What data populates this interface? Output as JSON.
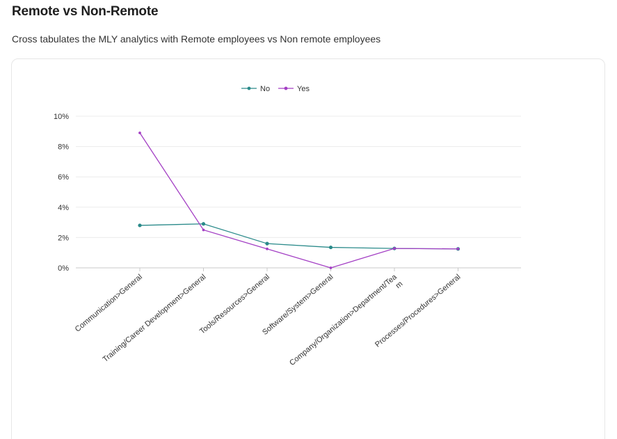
{
  "header": {
    "title": "Remote vs Non-Remote",
    "subtitle": "Cross tabulates the MLY analytics with Remote employees vs Non remote employees"
  },
  "chart_data": {
    "type": "line",
    "title": "",
    "xlabel": "",
    "ylabel": "",
    "categories": [
      "Communication>General",
      "Training/Career Development>General",
      "Tools/Resources>General",
      "Software/System>General",
      "Company/Organization>Department/Team",
      "Processes/Procedures>General"
    ],
    "category_lines": [
      [
        "Communication>General"
      ],
      [
        "Training/Career Development>General"
      ],
      [
        "Tools/Resources>General"
      ],
      [
        "Software/System>General"
      ],
      [
        "Company/Organization>Department/Tea",
        "m"
      ],
      [
        "Processes/Procedures>General"
      ]
    ],
    "series": [
      {
        "name": "No",
        "color": "#2a8a8a",
        "values": [
          2.8,
          2.9,
          1.6,
          1.35,
          1.28,
          1.25
        ]
      },
      {
        "name": "Yes",
        "color": "#a33fc4",
        "values": [
          8.9,
          2.5,
          1.25,
          0.0,
          1.28,
          1.25
        ]
      }
    ],
    "ylim": [
      0,
      10
    ],
    "yticks": [
      0,
      2,
      4,
      6,
      8,
      10
    ],
    "ytick_labels": [
      "0%",
      "2%",
      "4%",
      "6%",
      "8%",
      "10%"
    ],
    "grid": true,
    "legend": "top-center"
  }
}
